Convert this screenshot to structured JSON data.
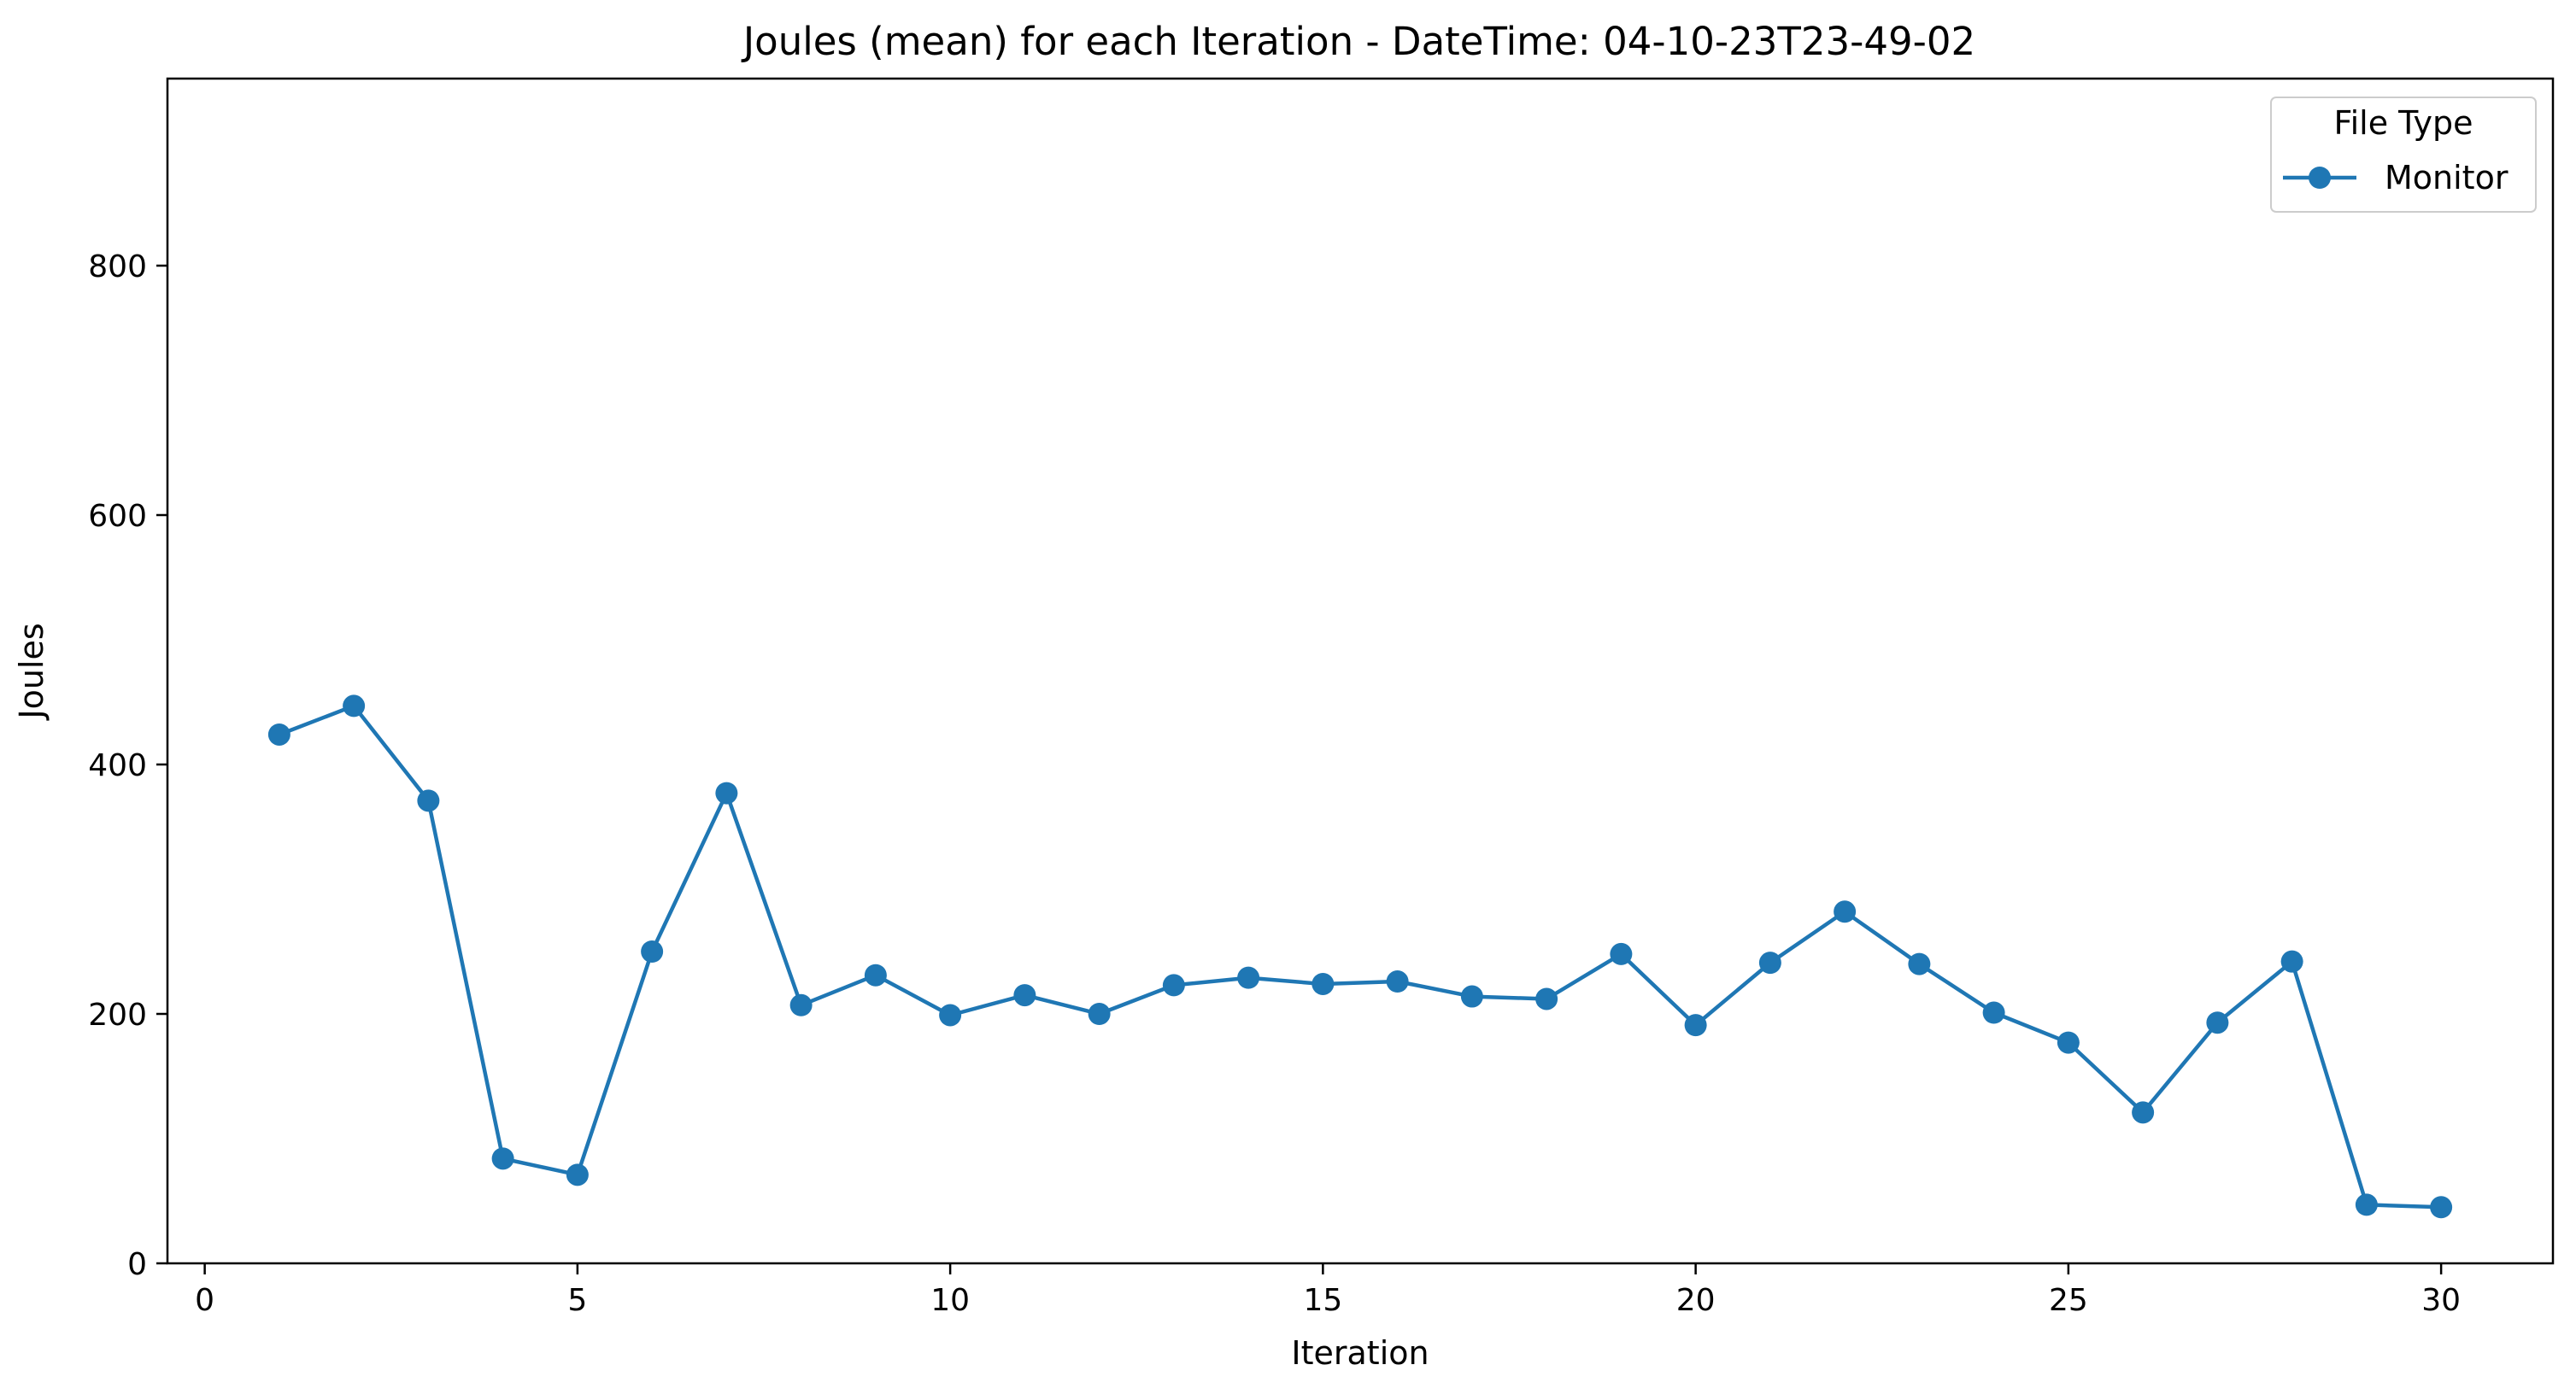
{
  "chart_data": {
    "type": "line",
    "title": "Joules (mean) for each Iteration - DateTime: 04-10-23T23-49-02",
    "xlabel": "Iteration",
    "ylabel": "Joules",
    "xlim": [
      -0.5,
      31.5
    ],
    "ylim": [
      0,
      950
    ],
    "xticks": [
      0,
      5,
      10,
      15,
      20,
      25,
      30
    ],
    "yticks": [
      0,
      200,
      400,
      600,
      800
    ],
    "grid": false,
    "legend": {
      "title": "File Type",
      "placement": "top-right"
    },
    "series": [
      {
        "name": "Monitor",
        "color": "#1f77b4",
        "marker": "circle",
        "x": [
          1,
          2,
          3,
          4,
          5,
          6,
          7,
          8,
          9,
          10,
          11,
          12,
          13,
          14,
          15,
          16,
          17,
          18,
          19,
          20,
          21,
          22,
          23,
          24,
          25,
          26,
          27,
          28,
          29,
          30
        ],
        "y": [
          424,
          447,
          371,
          84,
          71,
          250,
          377,
          207,
          231,
          199,
          215,
          200,
          223,
          229,
          224,
          226,
          214,
          212,
          248,
          191,
          241,
          282,
          240,
          201,
          177,
          121,
          193,
          242,
          47,
          45
        ]
      }
    ]
  }
}
